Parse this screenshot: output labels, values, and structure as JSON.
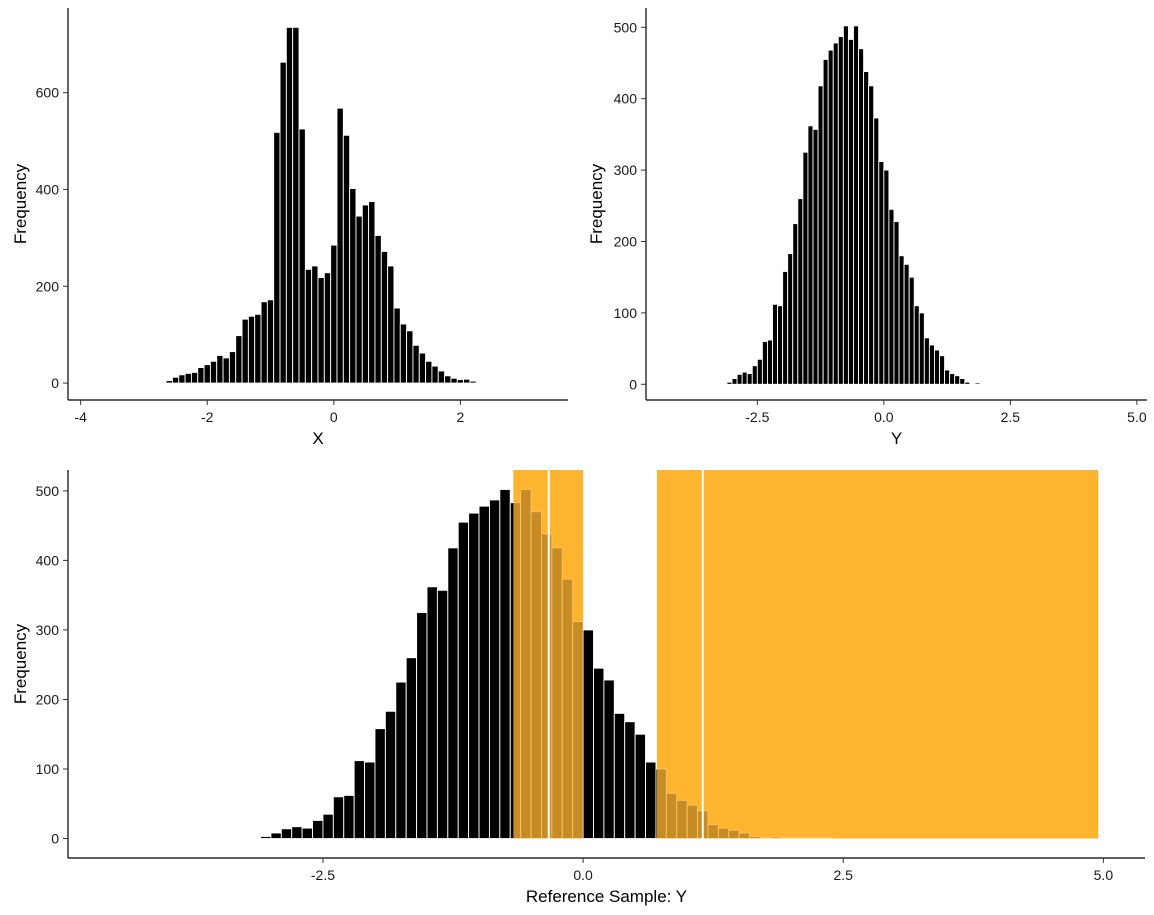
{
  "chart_data": [
    {
      "id": "hist-x",
      "type": "bar",
      "xlabel": "X",
      "ylabel": "Frequency",
      "xlim": [
        -4.2,
        3.7
      ],
      "ylim": [
        -35,
        775
      ],
      "xticks": [
        -4,
        -2,
        0,
        2
      ],
      "yticks": [
        0,
        200,
        400,
        600
      ],
      "bin_start": -3.05,
      "bin_width": 0.1,
      "values": [
        1,
        1,
        1,
        2,
        5,
        12,
        17,
        20,
        22,
        32,
        38,
        45,
        57,
        52,
        65,
        98,
        132,
        138,
        142,
        168,
        172,
        518,
        663,
        735,
        735,
        525,
        235,
        242,
        218,
        228,
        285,
        568,
        512,
        402,
        345,
        368,
        375,
        305,
        272,
        242,
        155,
        122,
        108,
        78,
        62,
        45,
        35,
        25,
        15,
        10,
        7,
        8,
        4,
        0,
        1
      ]
    },
    {
      "id": "hist-y",
      "type": "bar",
      "xlabel": "Y",
      "ylabel": "Frequency",
      "xlim": [
        -4.7,
        5.2
      ],
      "ylim": [
        -22,
        527
      ],
      "xticks": [
        -2.5,
        0.0,
        2.5,
        5.0
      ],
      "xtick_labels": [
        "-2.5",
        "0.0",
        "2.5",
        "5.0"
      ],
      "yticks": [
        0,
        100,
        200,
        300,
        400,
        500
      ],
      "bin_start": -3.5,
      "bin_width": 0.1,
      "values": [
        1,
        0,
        1,
        1,
        3,
        8,
        14,
        17,
        15,
        26,
        35,
        60,
        62,
        112,
        110,
        158,
        183,
        225,
        260,
        325,
        362,
        357,
        418,
        455,
        468,
        478,
        487,
        502,
        483,
        502,
        470,
        438,
        418,
        373,
        312,
        300,
        245,
        228,
        180,
        168,
        150,
        110,
        100,
        65,
        55,
        48,
        40,
        20,
        15,
        12,
        8,
        3,
        1,
        2,
        0,
        0,
        1,
        1,
        1
      ]
    },
    {
      "id": "hist-ref",
      "type": "bar",
      "xlabel": "Reference Sample: Y",
      "ylabel": "Frequency",
      "xlim": [
        -4.95,
        5.4
      ],
      "ylim": [
        -28,
        530
      ],
      "xticks": [
        -2.5,
        0.0,
        2.5,
        5.0
      ],
      "xtick_labels": [
        "-2.5",
        "0.0",
        "2.5",
        "5.0"
      ],
      "yticks": [
        0,
        100,
        200,
        300,
        400,
        500
      ],
      "bin_start": -3.5,
      "bin_width": 0.1,
      "values": [
        1,
        0,
        1,
        1,
        3,
        8,
        14,
        17,
        15,
        26,
        35,
        60,
        62,
        112,
        110,
        158,
        183,
        225,
        260,
        325,
        362,
        357,
        418,
        455,
        468,
        478,
        487,
        502,
        483,
        502,
        470,
        438,
        418,
        373,
        312,
        300,
        245,
        228,
        180,
        168,
        150,
        110,
        100,
        65,
        55,
        48,
        40,
        20,
        15,
        12,
        8,
        3,
        1,
        2,
        0,
        0,
        1,
        1,
        1
      ],
      "shaded_regions": [
        [
          -0.67,
          0.0
        ],
        [
          0.71,
          4.95
        ]
      ],
      "shade_color": "#FFB431",
      "vlines": [
        -0.33,
        1.15
      ]
    }
  ]
}
